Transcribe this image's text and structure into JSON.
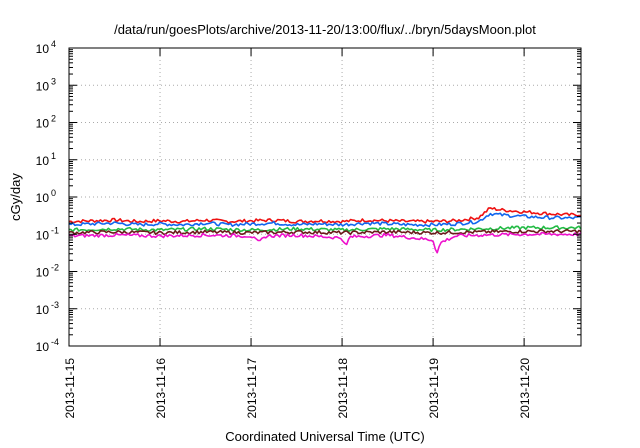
{
  "chart_data": {
    "type": "line",
    "title": "/data/run/goesPlots/archive/2013-11-20/13:00/flux/../bryn/5daysMoon.plot",
    "xlabel": "Coordinated Universal Time (UTC)",
    "ylabel": "cGy/day",
    "y_scale": "log",
    "ylim_exponents": [
      -4,
      4
    ],
    "y_tick_base": "10",
    "y_tick_exponents": [
      "-4",
      "-3",
      "-2",
      "-1",
      "0",
      "1",
      "2",
      "3",
      "4"
    ],
    "x_range": [
      "2013-11-15T00:00",
      "2013-11-20T15:00"
    ],
    "x_ticks": [
      "2013-11-15",
      "2013-11-16",
      "2013-11-17",
      "2013-11-18",
      "2013-11-19",
      "2013-11-20"
    ],
    "grid": true,
    "series": [
      {
        "color": "#ee1111",
        "points": [
          [
            "2013-11-15T00:00",
            0.22
          ],
          [
            "2013-11-15T06:00",
            0.23
          ],
          [
            "2013-11-15T12:00",
            0.24
          ],
          [
            "2013-11-15T18:00",
            0.22
          ],
          [
            "2013-11-16T00:00",
            0.23
          ],
          [
            "2013-11-16T06:00",
            0.22
          ],
          [
            "2013-11-16T12:00",
            0.24
          ],
          [
            "2013-11-16T18:00",
            0.22
          ],
          [
            "2013-11-17T00:00",
            0.23
          ],
          [
            "2013-11-17T06:00",
            0.24
          ],
          [
            "2013-11-17T12:00",
            0.22
          ],
          [
            "2013-11-17T18:00",
            0.23
          ],
          [
            "2013-11-18T00:00",
            0.22
          ],
          [
            "2013-11-18T06:00",
            0.24
          ],
          [
            "2013-11-18T12:00",
            0.23
          ],
          [
            "2013-11-18T18:00",
            0.22
          ],
          [
            "2013-11-19T00:00",
            0.22
          ],
          [
            "2013-11-19T06:00",
            0.23
          ],
          [
            "2013-11-19T12:00",
            0.28
          ],
          [
            "2013-11-19T15:00",
            0.5
          ],
          [
            "2013-11-19T18:00",
            0.45
          ],
          [
            "2013-11-20T00:00",
            0.4
          ],
          [
            "2013-11-20T06:00",
            0.36
          ],
          [
            "2013-11-20T12:00",
            0.33
          ],
          [
            "2013-11-20T15:00",
            0.34
          ]
        ]
      },
      {
        "color": "#1166ee",
        "points": [
          [
            "2013-11-15T00:00",
            0.18
          ],
          [
            "2013-11-15T06:00",
            0.19
          ],
          [
            "2013-11-15T12:00",
            0.2
          ],
          [
            "2013-11-15T18:00",
            0.18
          ],
          [
            "2013-11-16T00:00",
            0.19
          ],
          [
            "2013-11-16T06:00",
            0.18
          ],
          [
            "2013-11-16T12:00",
            0.2
          ],
          [
            "2013-11-16T18:00",
            0.18
          ],
          [
            "2013-11-17T00:00",
            0.19
          ],
          [
            "2013-11-17T06:00",
            0.2
          ],
          [
            "2013-11-17T12:00",
            0.18
          ],
          [
            "2013-11-17T18:00",
            0.19
          ],
          [
            "2013-11-18T00:00",
            0.18
          ],
          [
            "2013-11-18T06:00",
            0.2
          ],
          [
            "2013-11-18T12:00",
            0.19
          ],
          [
            "2013-11-18T18:00",
            0.18
          ],
          [
            "2013-11-19T00:00",
            0.18
          ],
          [
            "2013-11-19T06:00",
            0.19
          ],
          [
            "2013-11-19T12:00",
            0.22
          ],
          [
            "2013-11-19T15:00",
            0.36
          ],
          [
            "2013-11-19T18:00",
            0.33
          ],
          [
            "2013-11-20T00:00",
            0.3
          ],
          [
            "2013-11-20T06:00",
            0.28
          ],
          [
            "2013-11-20T12:00",
            0.27
          ],
          [
            "2013-11-20T15:00",
            0.28
          ]
        ]
      },
      {
        "color": "#22bb44",
        "points": [
          [
            "2013-11-15T00:00",
            0.13
          ],
          [
            "2013-11-15T12:00",
            0.14
          ],
          [
            "2013-11-16T00:00",
            0.13
          ],
          [
            "2013-11-16T12:00",
            0.14
          ],
          [
            "2013-11-17T00:00",
            0.13
          ],
          [
            "2013-11-17T12:00",
            0.14
          ],
          [
            "2013-11-18T00:00",
            0.13
          ],
          [
            "2013-11-18T12:00",
            0.14
          ],
          [
            "2013-11-19T00:00",
            0.13
          ],
          [
            "2013-11-19T12:00",
            0.14
          ],
          [
            "2013-11-20T00:00",
            0.15
          ],
          [
            "2013-11-20T15:00",
            0.15
          ]
        ]
      },
      {
        "color": "#6b1a1a",
        "points": [
          [
            "2013-11-15T00:00",
            0.11
          ],
          [
            "2013-11-15T12:00",
            0.115
          ],
          [
            "2013-11-16T00:00",
            0.11
          ],
          [
            "2013-11-16T12:00",
            0.115
          ],
          [
            "2013-11-17T00:00",
            0.11
          ],
          [
            "2013-11-17T12:00",
            0.115
          ],
          [
            "2013-11-18T00:00",
            0.11
          ],
          [
            "2013-11-18T12:00",
            0.115
          ],
          [
            "2013-11-19T00:00",
            0.11
          ],
          [
            "2013-11-19T12:00",
            0.115
          ],
          [
            "2013-11-20T00:00",
            0.12
          ],
          [
            "2013-11-20T15:00",
            0.12
          ]
        ]
      },
      {
        "color": "#ee11cc",
        "points": [
          [
            "2013-11-15T00:00",
            0.09
          ],
          [
            "2013-11-15T12:00",
            0.095
          ],
          [
            "2013-11-16T00:00",
            0.09
          ],
          [
            "2013-11-16T12:00",
            0.095
          ],
          [
            "2013-11-17T00:00",
            0.09
          ],
          [
            "2013-11-17T02:00",
            0.06
          ],
          [
            "2013-11-17T04:00",
            0.09
          ],
          [
            "2013-11-17T12:00",
            0.095
          ],
          [
            "2013-11-18T00:00",
            0.08
          ],
          [
            "2013-11-18T01:00",
            0.045
          ],
          [
            "2013-11-18T02:00",
            0.085
          ],
          [
            "2013-11-18T12:00",
            0.095
          ],
          [
            "2013-11-19T00:00",
            0.07
          ],
          [
            "2013-11-19T01:00",
            0.03
          ],
          [
            "2013-11-19T02:00",
            0.06
          ],
          [
            "2013-11-19T06:00",
            0.09
          ],
          [
            "2013-11-19T12:00",
            0.095
          ],
          [
            "2013-11-20T00:00",
            0.1
          ],
          [
            "2013-11-20T15:00",
            0.1
          ]
        ]
      }
    ]
  }
}
